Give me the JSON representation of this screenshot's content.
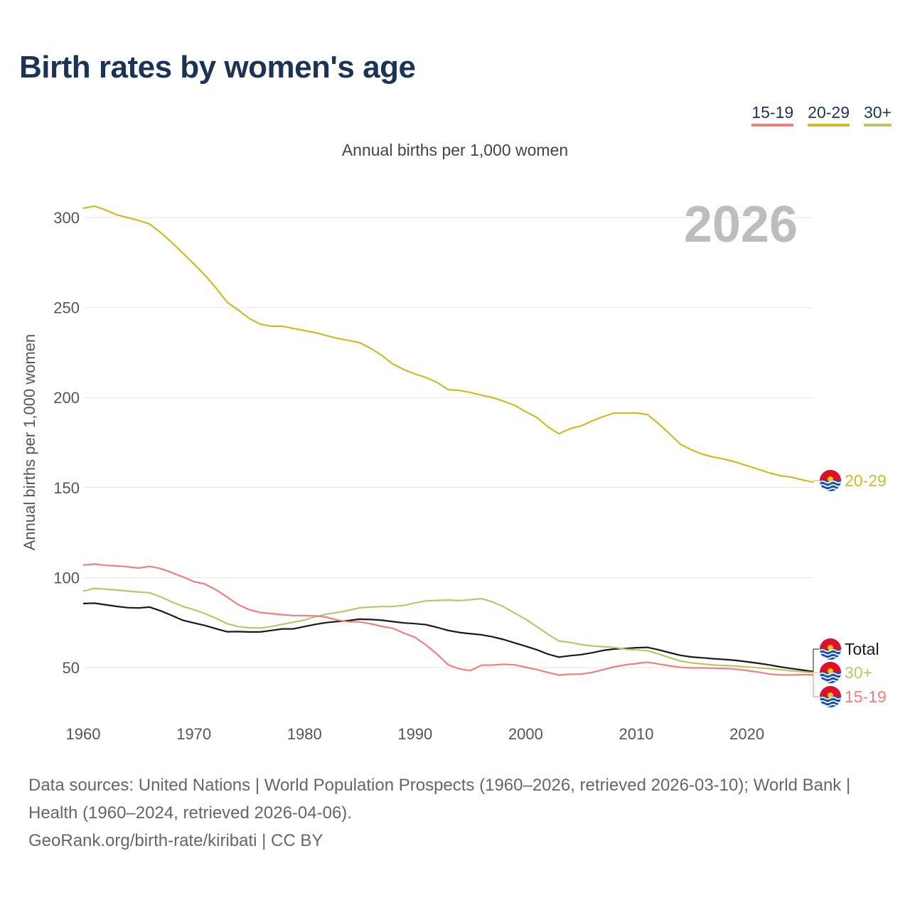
{
  "title": "Birth rates by women's age",
  "legend": [
    {
      "label": "15-19",
      "color": "#ee8080"
    },
    {
      "label": "20-29",
      "color": "#cfbb25"
    },
    {
      "label": "30+",
      "color": "#b5c96a"
    }
  ],
  "footer": {
    "sources": "Data sources: United Nations | World Population Prospects (1960–2026, retrieved 2026-03-10); World Bank | Health (1960–2024, retrieved 2026-04-06).",
    "attribution": "GeoRank.org/birth-rate/kiribati | CC BY"
  },
  "chart_data": {
    "type": "line",
    "title": "Annual births per 1,000 women",
    "ylabel": "Annual births per 1,000 women",
    "xlabel": "",
    "year_watermark": "2026",
    "xlim": [
      1960,
      2026
    ],
    "ylim": [
      30,
      310
    ],
    "xticks": [
      1960,
      1970,
      1980,
      1990,
      2000,
      2010,
      2020
    ],
    "yticks": [
      50,
      100,
      150,
      200,
      250,
      300
    ],
    "grid": true,
    "x_start": 1960,
    "series": [
      {
        "name": "20-29",
        "end_label": "20-29",
        "color": "#cfbb25",
        "values": [
          305.1,
          306.3,
          304.3,
          301.6,
          300,
          298.4,
          296.4,
          291.7,
          286.2,
          280.3,
          274.3,
          268,
          260.9,
          253,
          248.7,
          244,
          240.8,
          239.6,
          239.6,
          238.4,
          237.2,
          236,
          234.4,
          232.9,
          231.7,
          230.5,
          227.3,
          223.4,
          218.6,
          215.5,
          213.1,
          211.1,
          208.4,
          204.4,
          204,
          202.8,
          201.3,
          200,
          198,
          195.7,
          192.1,
          189,
          183.8,
          179.9,
          182.7,
          184.2,
          187,
          189.4,
          191.4,
          191.4,
          191.4,
          190.6,
          185.5,
          179.9,
          174,
          170.9,
          168.5,
          166.9,
          165.7,
          164.1,
          162.2,
          160.2,
          158.2,
          156.6,
          155.8,
          154.3,
          153
        ]
      },
      {
        "name": "Total",
        "end_label": "Total",
        "color": "#1a1a1a",
        "values": [
          85.6,
          85.8,
          84.9,
          84,
          83.3,
          83.1,
          83.6,
          81.5,
          79,
          76.3,
          74.8,
          73.4,
          71.6,
          69.9,
          70,
          69.8,
          69.8,
          70.6,
          71.5,
          71.5,
          72.8,
          74,
          75,
          75.6,
          76.1,
          76.9,
          76.7,
          76.3,
          75.5,
          74.8,
          74.4,
          73.8,
          72.3,
          70.6,
          69.5,
          68.8,
          68.2,
          67.1,
          65.6,
          63.7,
          61.9,
          59.9,
          57.5,
          55.8,
          56.6,
          57.2,
          58.2,
          59.5,
          60.3,
          60.6,
          61,
          61.2,
          59.9,
          58.3,
          56.8,
          55.9,
          55.4,
          54.9,
          54.5,
          54,
          53.2,
          52.4,
          51.5,
          50.4,
          49.5,
          48.6,
          47.8
        ]
      },
      {
        "name": "30+",
        "end_label": "30+",
        "color": "#b5c96a",
        "values": [
          92.4,
          94,
          93.6,
          93.1,
          92.5,
          92,
          91.6,
          89.3,
          86.5,
          84,
          82.2,
          80,
          77.4,
          74.4,
          72.8,
          72.1,
          71.9,
          72.8,
          74,
          75.2,
          76.4,
          78.3,
          79.7,
          80.6,
          81.8,
          83.2,
          83.6,
          83.9,
          83.9,
          84.6,
          85.9,
          87.1,
          87.3,
          87.5,
          87.2,
          87.7,
          88.3,
          86.5,
          83.8,
          80.3,
          76.8,
          72.8,
          68.6,
          64.8,
          64,
          62.8,
          62,
          61.6,
          61.2,
          60.2,
          59.8,
          59.4,
          57.6,
          55.5,
          53.6,
          52.6,
          52,
          51.4,
          51.2,
          50.8,
          50.4,
          49.9,
          49.4,
          48.8,
          48.2,
          47.7,
          47.2
        ]
      },
      {
        "name": "15-19",
        "end_label": "15-19",
        "color": "#ee8080",
        "values": [
          106.9,
          107.5,
          106.8,
          106.5,
          106,
          105.3,
          106.2,
          105,
          102.8,
          100.4,
          97.8,
          96.4,
          93.2,
          89.2,
          85,
          82.2,
          80.6,
          80,
          79.4,
          78.9,
          78.9,
          78.7,
          78,
          76.4,
          75.4,
          75.4,
          74.3,
          72.9,
          71.8,
          69.1,
          66.8,
          62.5,
          57.4,
          51.5,
          49.3,
          48.3,
          51.3,
          51.4,
          51.8,
          51.5,
          50.2,
          48.9,
          47.3,
          45.8,
          46.3,
          46.4,
          47.3,
          48.8,
          50.4,
          51.5,
          52.2,
          53,
          52,
          51,
          50.1,
          49.8,
          49.8,
          49.7,
          49.5,
          49.1,
          48.4,
          47.5,
          46.4,
          45.9,
          45.9,
          46,
          46
        ]
      }
    ]
  }
}
